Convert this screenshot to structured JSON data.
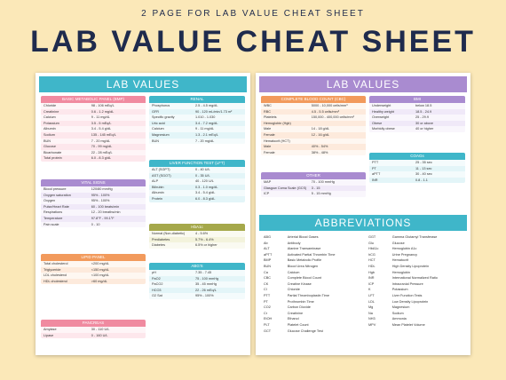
{
  "header": {
    "subtitle": "2 PAGE FOR LAB VALUE CHEAT SHEET",
    "title": "LAB VALUE CHEAT SHEET"
  },
  "pages": [
    {
      "title": "LAB VALUES",
      "sections": [
        {
          "title": "BASIC METABOLIC PANEL (BMP)",
          "rows": [
            [
              "Chloride",
              "98 - 106 mEq/L"
            ],
            [
              "Creatinine",
              "0.6 - 1.2 mg/dL"
            ],
            [
              "Calcium",
              "9 - 11 mg/dL"
            ],
            [
              "Potassium",
              "3.5 - 5 mEq/L"
            ],
            [
              "Albumin",
              "3.4 - 5.4 g/dL"
            ],
            [
              "Sodium",
              "135 - 145 mEq/L"
            ],
            [
              "BUN",
              "7 - 20 mg/dL"
            ],
            [
              "Glucose",
              "70 - 99 mg/dL"
            ],
            [
              "Bicarbonate",
              "22 - 28 mEq/L"
            ],
            [
              "Total protein",
              "6.0 - 8.3 g/dL"
            ]
          ]
        },
        {
          "title": "RENAL",
          "rows": [
            [
              "Phosphorus",
              "2.5 - 4.5 mg/dL"
            ],
            [
              "GFR",
              "90 - 120 mL/min/1.73 m²"
            ],
            [
              "Specific gravity",
              "1.010 - 1.030"
            ],
            [
              "Uric acid",
              "3.4 - 7.2 mg/dL"
            ],
            [
              "Calcium",
              "9 - 11 mg/dL"
            ],
            [
              "Magnesium",
              "1.3 - 2.1 mEq/L"
            ],
            [
              "BUN",
              "7 - 20 mg/dL"
            ]
          ]
        },
        {
          "title": "VITAL SIGNS",
          "rows": [
            [
              "Blood pressure",
              "120/80 mmHg"
            ],
            [
              "Oxygen saturation",
              "95% - 100%"
            ],
            [
              "Oxygen",
              "95% - 100%"
            ],
            [
              "Pulse/Heart Rate",
              "60 - 100 beats/min"
            ],
            [
              "Respirations",
              "12 - 20 breaths/min"
            ],
            [
              "Temperature",
              "97.8°F - 99.1°F"
            ],
            [
              "Pain scale",
              "0 - 10"
            ]
          ]
        },
        {
          "title": "LIVER FUNCTION TEST (LFT)",
          "rows": [
            [
              "ALT (SGPT)",
              "0 - 40 U/L"
            ],
            [
              "AST (SGOT)",
              "0 - 35 U/L"
            ],
            [
              "ALP",
              "40 - 120 U/L"
            ],
            [
              "Bilirubin",
              "0.3 - 1.0 mg/dL"
            ],
            [
              "Albumin",
              "3.4 - 5.4 g/dL"
            ],
            [
              "Protein",
              "6.0 - 8.3 g/dL"
            ]
          ]
        },
        {
          "title": "HbA1c",
          "rows": [
            [
              "Normal (Non-diabetic)",
              "4 - 5.6%"
            ],
            [
              "Prediabetes",
              "5.7% - 6.4%"
            ],
            [
              "Diabetes",
              "6.5% or higher"
            ]
          ]
        },
        {
          "title": "LIPID PANEL",
          "rows": [
            [
              "Total cholesterol",
              "<200 mg/dL"
            ],
            [
              "Triglyceride",
              "<150 mg/dL"
            ],
            [
              "LDL cholesterol",
              "<100 mg/dL"
            ],
            [
              "HDL cholesterol",
              ">60 mg/dL"
            ]
          ]
        },
        {
          "title": "ABG'S",
          "rows": [
            [
              "pH",
              "7.35 - 7.45"
            ],
            [
              "PaO2",
              "75 - 100 mmHg"
            ],
            [
              "PaCO2",
              "35 - 45 mmHg"
            ],
            [
              "HCO3",
              "22 - 26 mEq/L"
            ],
            [
              "O2 Sat",
              "95% - 100%"
            ]
          ]
        },
        {
          "title": "PANCREAS",
          "rows": [
            [
              "Amylase",
              "30 - 110 U/L"
            ],
            [
              "Lipase",
              "0 - 160 U/L"
            ]
          ]
        }
      ]
    },
    {
      "title": "LAB VALUES",
      "sections": [
        {
          "title": "COMPLETE BLOOD COUNT (CBC)",
          "rows": [
            [
              "WBC",
              "5000 - 10,000 cells/mm³"
            ],
            [
              "RBC",
              "4.5 - 5.5 cells/mm³"
            ],
            [
              "Platelets",
              "150,000 - 400,000 cells/mm³"
            ],
            [
              "Hemoglobin (Hgb)",
              ""
            ],
            [
              "Male",
              "14 - 18 g/dL"
            ],
            [
              "Female",
              "12 - 16 g/dL"
            ],
            [
              "Hematocrit (HCT)",
              ""
            ],
            [
              "Male",
              "40% - 54%"
            ],
            [
              "Female",
              "38% - 48%"
            ]
          ]
        },
        {
          "title": "BMI",
          "rows": [
            [
              "Underweight",
              "below 18.5"
            ],
            [
              "Healthy weight",
              "18.5 - 24.9"
            ],
            [
              "Overweight",
              "25 - 29.9"
            ],
            [
              "Obese",
              "30 or above"
            ],
            [
              "Morbidly obese",
              "40 or higher"
            ]
          ]
        },
        {
          "title": "COAGs",
          "rows": [
            [
              "PTT",
              "25 - 35 sec"
            ],
            [
              "PT",
              "11 - 13 sec"
            ],
            [
              "aPTT",
              "30 - 40 sec"
            ],
            [
              "INR",
              "0.8 - 1.1"
            ]
          ]
        },
        {
          "title": "OTHER",
          "rows": [
            [
              "MAP",
              "70 - 100 mmHg"
            ],
            [
              "Glasgow Coma Scale (GCS)",
              "3 - 15"
            ],
            [
              "ICP",
              "5 - 15 mmHg"
            ]
          ]
        }
      ],
      "abbreviations": {
        "title": "ABBREVIATIONS",
        "left": [
          [
            "ABG",
            "Arterial Blood Gases"
          ],
          [
            "Ab",
            "Antibody"
          ],
          [
            "ALT",
            "Alanine Transaminase"
          ],
          [
            "aPTT",
            "Activated Partial Thrombin Time"
          ],
          [
            "BMP",
            "Basic Metabolic Profile"
          ],
          [
            "BUN",
            "Blood Urea Nitrogen"
          ],
          [
            "Ca",
            "Calcium"
          ],
          [
            "CBC",
            "Complete Blood Count"
          ],
          [
            "CK",
            "Creatine Kinase"
          ],
          [
            "Cl",
            "Chloride"
          ],
          [
            "PTT",
            "Partial Thromboplastin Time"
          ],
          [
            "PT",
            "Prothrombin Time"
          ],
          [
            "CO2",
            "Carbon Dioxide"
          ],
          [
            "Cr",
            "Creatinine"
          ],
          [
            "EtOH",
            "Ethanol"
          ],
          [
            "PLT",
            "Platelet Count"
          ],
          [
            "GCT",
            "Glucose Challenge Test"
          ]
        ],
        "right": [
          [
            "GGT",
            "Gamma Glutamyl Transferase"
          ],
          [
            "Glu",
            "Glucose"
          ],
          [
            "HbA1c",
            "Hemoglobin A1c"
          ],
          [
            "hCG",
            "Urine Pregnancy"
          ],
          [
            "HCT",
            "Hematocrit"
          ],
          [
            "HDL",
            "High Density Lipoprotein"
          ],
          [
            "Hgb",
            "Hemoglobin"
          ],
          [
            "INR",
            "International Normalized Ratio"
          ],
          [
            "ICP",
            "Intracranial Pressure"
          ],
          [
            "K",
            "Potassium"
          ],
          [
            "LFT",
            "Liver Function Tests"
          ],
          [
            "LDL",
            "Low Density Lipoprotein"
          ],
          [
            "Mg",
            "Magnesium"
          ],
          [
            "Na",
            "Sodium"
          ],
          [
            "NH3",
            "Ammonia"
          ],
          [
            "MPV",
            "Mean Platelet Volume"
          ]
        ]
      }
    }
  ]
}
